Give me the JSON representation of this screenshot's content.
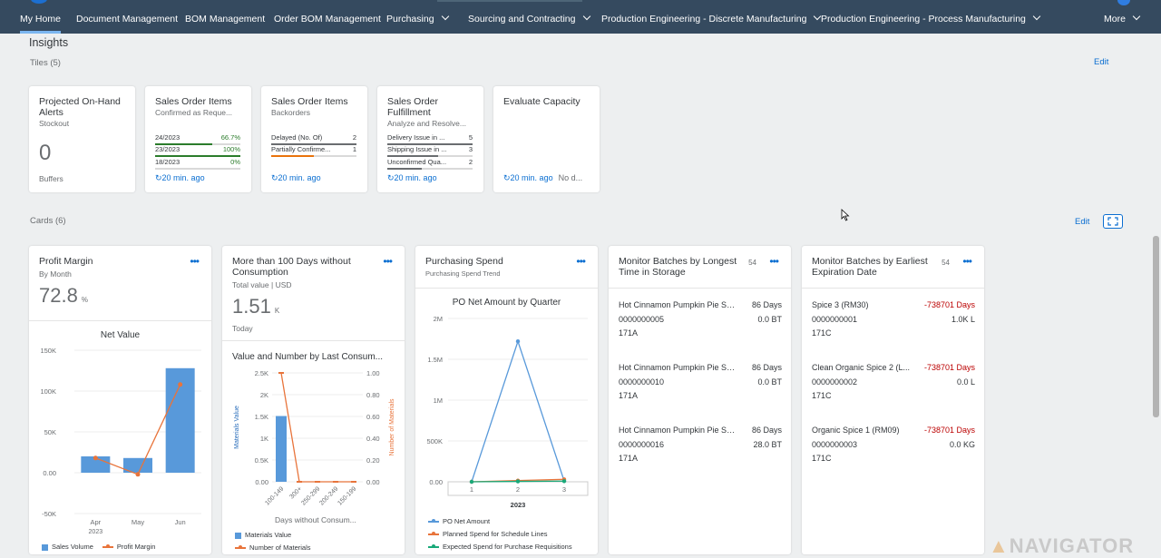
{
  "nav": {
    "items": [
      {
        "label": "My Home",
        "has_menu": false,
        "active": true
      },
      {
        "label": "Document Management",
        "has_menu": false
      },
      {
        "label": "BOM Management",
        "has_menu": false
      },
      {
        "label": "Order BOM Management",
        "has_menu": false
      },
      {
        "label": "Purchasing",
        "has_menu": true
      },
      {
        "label": "Sourcing and Contracting",
        "has_menu": true
      },
      {
        "label": "Production Engineering - Discrete Manufacturing",
        "has_menu": true
      },
      {
        "label": "Production Engineering - Process Manufacturing",
        "has_menu": true
      },
      {
        "label": "More",
        "has_menu": true
      }
    ]
  },
  "insights": {
    "title": "Insights"
  },
  "tiles_section": {
    "label": "Tiles (5)",
    "edit": "Edit"
  },
  "tiles": [
    {
      "title": "Projected On-Hand Alerts",
      "subtitle": "Stockout",
      "value": "0",
      "footer": "Buffers"
    },
    {
      "title": "Sales Order Items",
      "subtitle": "Confirmed as Reque...",
      "rows": [
        {
          "label": "24/2023",
          "value": "66.7%",
          "fill": 0.667,
          "color": "#2b7c2b"
        },
        {
          "label": "23/2023",
          "value": "100%",
          "fill": 1.0,
          "color": "#2b7c2b"
        },
        {
          "label": "18/2023",
          "value": "0%",
          "fill": 0.0,
          "color": "#2b7c2b"
        }
      ],
      "footer": "20 min. ago"
    },
    {
      "title": "Sales Order Items",
      "subtitle": "Backorders",
      "rows": [
        {
          "label": "Delayed (No. Of)",
          "value": "2",
          "fill": 1.0,
          "color": "#6a6d70"
        },
        {
          "label": "Partially Confirme...",
          "value": "1",
          "fill": 0.5,
          "color": "#e9730c"
        }
      ],
      "footer": "20 min. ago"
    },
    {
      "title": "Sales Order Fulfillment",
      "subtitle": "Analyze and Resolve...",
      "rows": [
        {
          "label": "Delivery Issue in ...",
          "value": "5",
          "fill": 1.0,
          "color": "#6a6d70"
        },
        {
          "label": "Shipping Issue in ...",
          "value": "3",
          "fill": 0.6,
          "color": "#6a6d70"
        },
        {
          "label": "Unconfirmed Qua...",
          "value": "2",
          "fill": 0.4,
          "color": "#6a6d70"
        }
      ],
      "footer": "20 min. ago"
    },
    {
      "title": "Evaluate Capacity",
      "subtitle": "",
      "footer": "20 min. ago",
      "footer_extra": "No d..."
    }
  ],
  "cards_section": {
    "label": "Cards (6)",
    "edit": "Edit"
  },
  "cards": {
    "profit": {
      "title": "Profit Margin",
      "subtitle": "By Month",
      "kpi": "72.8",
      "kpi_unit": "%",
      "chart_title": "Net Value",
      "legend": [
        "Sales Volume",
        "Profit Margin"
      ]
    },
    "consumption": {
      "title": "More than 100 Days without Consumption",
      "subtitle": "Total value | USD",
      "kpi": "1.51",
      "kpi_unit": "K",
      "kpi_note": "Today",
      "chart_title": "Value and Number by Last Consum...",
      "y_left_label": "Materials Value",
      "y_right_label": "Number of Materials",
      "x_label": "Days without Consum...",
      "legend": [
        "Materials Value",
        "Number of Materials"
      ]
    },
    "purchasing": {
      "title": "Purchasing Spend",
      "subtitle": "Purchasing Spend Trend",
      "chart_title": "PO Net Amount by Quarter",
      "legend": [
        "PO Net Amount",
        "Planned Spend for Schedule Lines",
        "Expected Spend for Purchase Requisitions"
      ]
    },
    "batches_storage": {
      "title": "Monitor Batches by Longest Time in Storage",
      "count": "54",
      "items": [
        {
          "name": "Hot Cinnamon Pumpkin Pie Se...",
          "days": "86 Days",
          "id": "0000000005",
          "qty": "0.0 BT",
          "plant": "171A"
        },
        {
          "name": "Hot Cinnamon Pumpkin Pie Se...",
          "days": "86 Days",
          "id": "0000000010",
          "qty": "0.0 BT",
          "plant": "171A"
        },
        {
          "name": "Hot Cinnamon Pumpkin Pie Se...",
          "days": "86 Days",
          "id": "0000000016",
          "qty": "28.0 BT",
          "plant": "171A"
        }
      ]
    },
    "batches_expiry": {
      "title": "Monitor Batches by Earliest Expiration Date",
      "count": "54",
      "items": [
        {
          "name": "Spice 3 (RM30)",
          "days": "-738701 Days",
          "id": "0000000001",
          "qty": "1.0K L",
          "plant": "171C"
        },
        {
          "name": "Clean Organic Spice 2 (L...",
          "days": "-738701 Days",
          "id": "0000000002",
          "qty": "0.0 L",
          "plant": "171C"
        },
        {
          "name": "Organic Spice 1 (RM09)",
          "days": "-738701 Days",
          "id": "0000000003",
          "qty": "0.0 KG",
          "plant": "171C"
        }
      ]
    }
  },
  "chart_data": [
    {
      "type": "bar",
      "title": "Net Value",
      "categories": [
        "Apr",
        "May",
        "Jun"
      ],
      "x_group_label": "2023",
      "series": [
        {
          "name": "Sales Volume",
          "type": "bar",
          "values": [
            20000,
            18000,
            128000
          ],
          "color": "#5899da"
        },
        {
          "name": "Profit Margin",
          "type": "line",
          "values": [
            18000,
            -2000,
            108000
          ],
          "color": "#e8743b"
        }
      ],
      "yticks": [
        "150K",
        "100K",
        "50K",
        "0.00",
        "-50K"
      ],
      "ylim": [
        -50000,
        150000
      ]
    },
    {
      "type": "bar",
      "title": "Value and Number by Last Consum...",
      "categories": [
        "100-149",
        "300+",
        "250-299",
        "200-249",
        "150-199"
      ],
      "xlabel": "Days without Consum...",
      "ylabel": "Materials Value",
      "y2label": "Number of Materials",
      "series": [
        {
          "name": "Materials Value",
          "type": "bar",
          "values": [
            1510,
            0,
            0,
            0,
            0
          ],
          "color": "#5899da"
        },
        {
          "name": "Number of Materials",
          "type": "line",
          "axis": "right",
          "values": [
            1.0,
            0,
            0,
            0,
            0
          ],
          "color": "#e8743b"
        }
      ],
      "yticks": [
        "2.5K",
        "2K",
        "1.5K",
        "1K",
        "0.5K",
        "0.00"
      ],
      "y2ticks": [
        "1.00",
        "0.80",
        "0.60",
        "0.40",
        "0.20",
        "0.00"
      ],
      "ylim": [
        0,
        2500
      ],
      "y2lim": [
        0,
        1
      ]
    },
    {
      "type": "line",
      "title": "PO Net Amount by Quarter",
      "x": [
        "1",
        "2",
        "3"
      ],
      "x_group_label": "2023",
      "series": [
        {
          "name": "PO Net Amount",
          "values": [
            0,
            1720000,
            10000
          ],
          "color": "#5899da"
        },
        {
          "name": "Planned Spend for Schedule Lines",
          "values": [
            0,
            15000,
            30000
          ],
          "color": "#e8743b"
        },
        {
          "name": "Expected Spend for Purchase Requisitions",
          "values": [
            0,
            5000,
            8000
          ],
          "color": "#19a979"
        }
      ],
      "yticks": [
        "2M",
        "1.5M",
        "1M",
        "500K",
        "0.00"
      ],
      "ylim": [
        0,
        2000000
      ]
    }
  ],
  "watermark": "NAVIGATOR"
}
